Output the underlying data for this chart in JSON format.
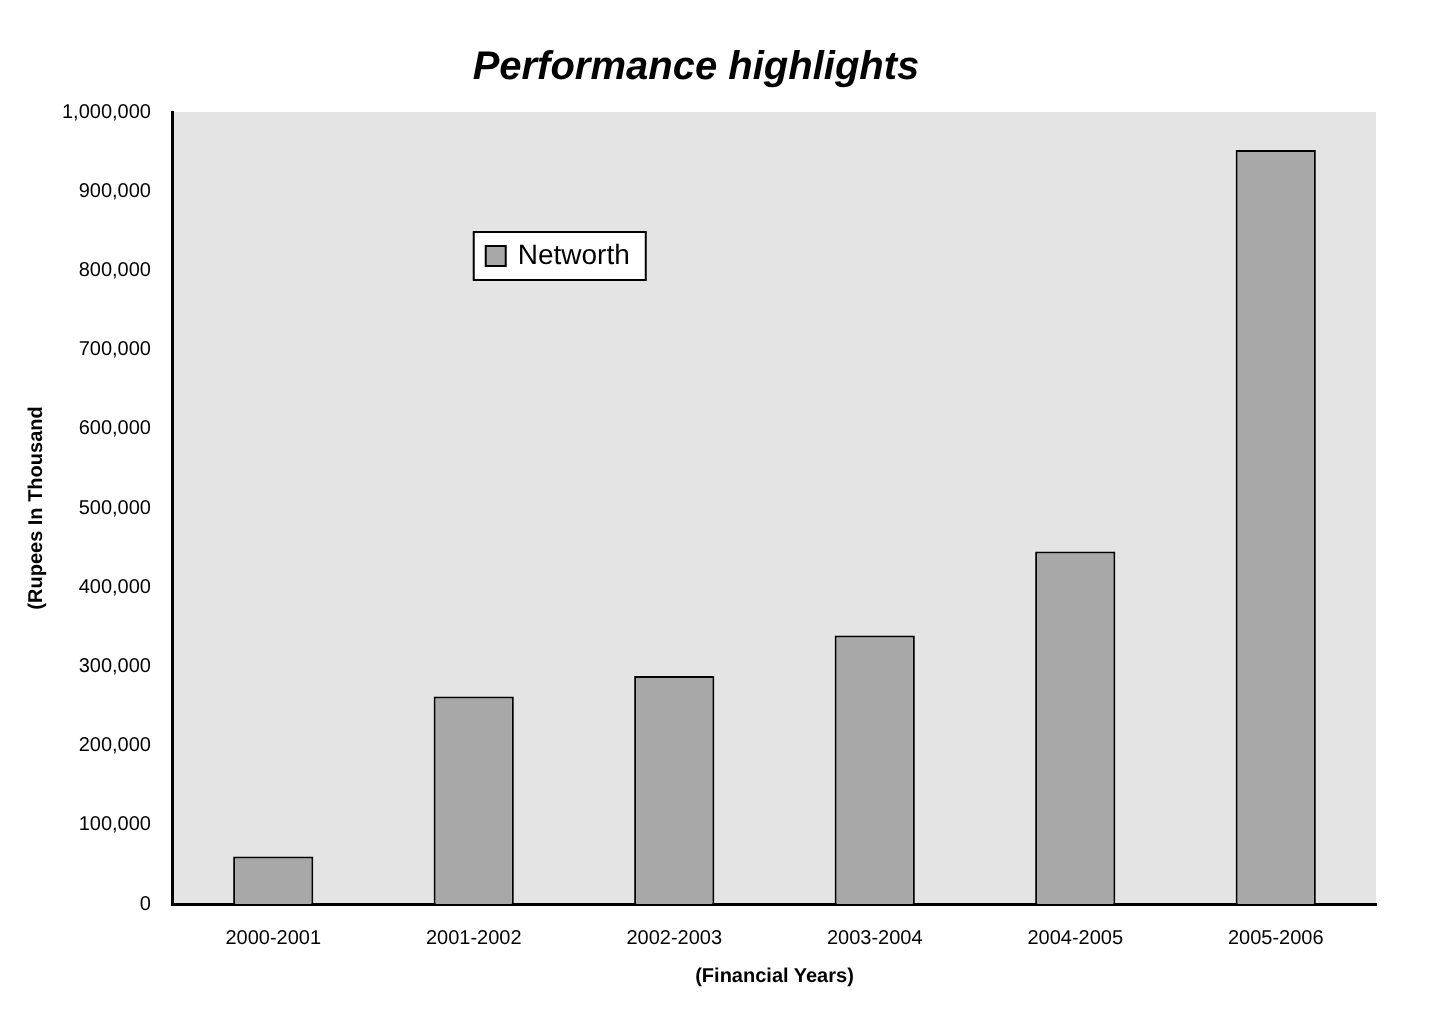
{
  "chart_data": {
    "type": "bar",
    "title": "Performance highlights",
    "xlabel": "(Financial Years)",
    "ylabel": "(Rupees In Thousand",
    "categories": [
      "2000-2001",
      "2001-2002",
      "2002-2003",
      "2003-2004",
      "2004-2005",
      "2005-2006"
    ],
    "series": [
      {
        "name": "Networth",
        "color": "#a8a8a8",
        "values": [
          60000,
          262000,
          288000,
          339000,
          445000,
          952000
        ]
      }
    ],
    "ylim": [
      0,
      1000000
    ],
    "yticks": [
      0,
      {
        "value": 100000,
        "label": "100,000"
      },
      {
        "value": 200000,
        "label": "200,000"
      },
      {
        "value": 300000,
        "label": "300,000"
      },
      {
        "value": 400000,
        "label": "400,000"
      },
      {
        "value": 500000,
        "label": "500,000"
      },
      {
        "value": 600000,
        "label": "600,000"
      },
      {
        "value": 700000,
        "label": "700,000"
      },
      {
        "value": 800000,
        "label": "800,000"
      },
      {
        "value": 900000,
        "label": "900,000"
      },
      {
        "value": 1000000,
        "label": "1,000,000"
      }
    ],
    "grid": false,
    "legend": "top left"
  }
}
